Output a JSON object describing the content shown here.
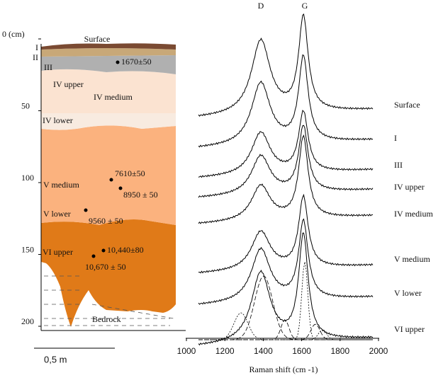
{
  "profile": {
    "depth_ticks": [
      {
        "value": 0,
        "label": "0 (cm)"
      },
      50,
      100,
      150,
      200
    ],
    "depth_lim": [
      0,
      200
    ],
    "layers": {
      "surface": "Surface",
      "l1": "I",
      "l2": "II",
      "l3": "III",
      "l4u": "IV upper",
      "l4m": "IV medium",
      "l4l": "IV lower",
      "l5m": "V medium",
      "l5l": "V lower",
      "l6u": "VI upper",
      "bedrock": "Bedrock"
    },
    "dates": [
      "1670±50",
      "7610±50",
      "8950 ± 50",
      "9560 ± 50",
      "10,440±80",
      "10,670 ± 50"
    ],
    "scale_bar": "0,5 m"
  },
  "spectra": {
    "peaks": [
      "D",
      "G"
    ],
    "xlabel": "Raman shift (cm -1)",
    "xlim": [
      1000,
      2000
    ],
    "xticks": [
      1000,
      1200,
      1400,
      1600,
      1800,
      2000
    ],
    "samples": [
      "Surface",
      "I",
      "III",
      "IV upper",
      "IV medium",
      "V medium",
      "V lower",
      "VI upper"
    ]
  }
}
